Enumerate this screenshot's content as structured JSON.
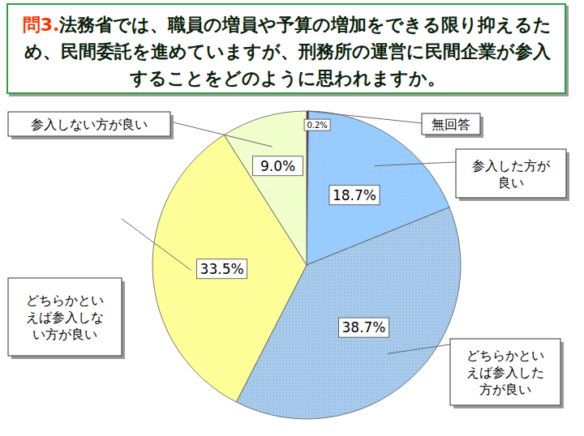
{
  "chart_data": {
    "type": "pie",
    "title": "問3.法務省では、職員の増員や予算の増加をできる限り抑えるため、民間委託を進めていますが、刑務所の運営に民間企業が参入することをどのように思われますか。",
    "categories": [
      "無回答",
      "参入した方が良い",
      "どちらかといえば参入した方が良い",
      "どちらかといえば参入しない方が良い",
      "参入しない方が良い"
    ],
    "values": [
      0.2,
      18.7,
      38.7,
      33.5,
      9.0
    ],
    "value_labels": [
      "0.2%",
      "18.7%",
      "38.7%",
      "33.5%",
      "9.0%"
    ],
    "colors": [
      "#7a0a3c",
      "#99ccff",
      "#a9cbed",
      "#ffff99",
      "#f0ffcc"
    ],
    "data_labels": true
  }
}
